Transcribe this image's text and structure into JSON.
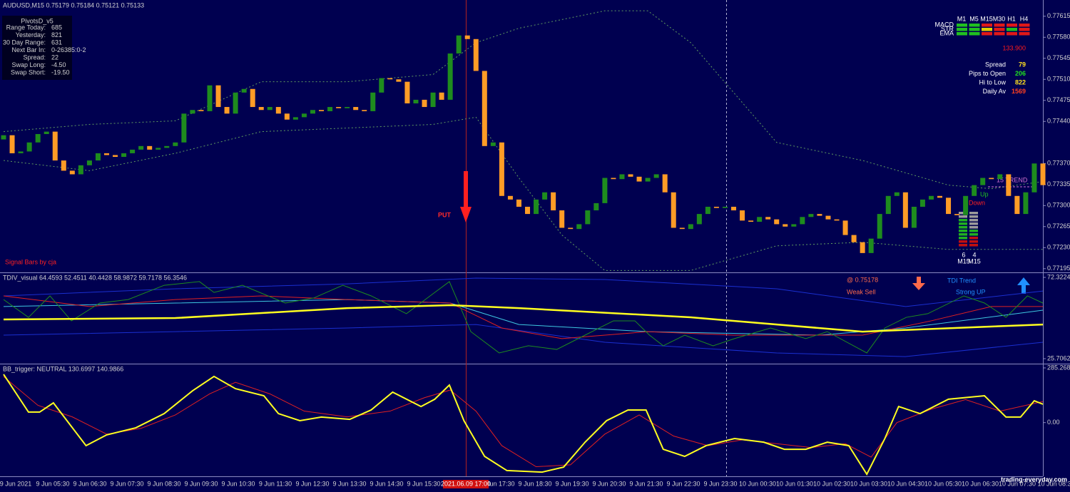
{
  "chart_data": [
    {
      "type": "candlestick",
      "title": "AUDUSD,M15  0.75179 0.75184 0.75121 0.75133",
      "up_color": "#1e8c1e",
      "down_color": "#ff9c26",
      "open": [
        0.7741,
        0.77417,
        0.77387,
        0.7739,
        0.77405,
        0.77419,
        0.77423,
        0.77375,
        0.77358,
        0.77352,
        0.77367,
        0.77375,
        0.77387,
        0.77384,
        0.77381,
        0.77387,
        0.77393,
        0.77399,
        0.77393,
        0.77396,
        0.77399,
        0.77405,
        0.77453,
        0.77459,
        0.77457,
        0.775,
        0.77464,
        0.77453,
        0.77488,
        0.77494,
        0.77464,
        0.77459,
        0.77464,
        0.77453,
        0.77443,
        0.77447,
        0.77453,
        0.77459,
        0.77457,
        0.77464,
        0.77462,
        0.77464,
        0.77459,
        0.77457,
        0.77488,
        0.77512,
        0.7751,
        0.77506,
        0.7747,
        0.77476,
        0.77464,
        0.77488,
        0.77476,
        0.77553,
        0.77583,
        0.77577,
        0.77524,
        0.77399,
        0.77405,
        0.77316,
        0.7731,
        0.77298,
        0.77286,
        0.7731,
        0.77322,
        0.77292,
        0.77263,
        0.77261,
        0.77269,
        0.77292,
        0.77304,
        0.77346,
        0.77344,
        0.77352,
        0.77348,
        0.7734,
        0.77346,
        0.77352,
        0.77322,
        0.77263,
        0.77261,
        0.77269,
        0.77286,
        0.77298,
        0.77296,
        0.77298,
        0.77292,
        0.77275,
        0.77273,
        0.77281,
        0.77277,
        0.77269,
        0.77265,
        0.77269,
        0.77281,
        0.77286,
        0.77283,
        0.77277,
        0.77275,
        0.77251,
        0.77239,
        0.77221,
        0.77245,
        0.77286,
        0.77316,
        0.77322,
        0.77263,
        0.77298,
        0.7731,
        0.77316,
        0.77313,
        0.77286,
        0.77284,
        0.77316,
        0.77334,
        0.77346,
        0.77344,
        0.77352,
        0.77316,
        0.77286,
        0.77322,
        0.7737
      ],
      "close": [
        0.77417,
        0.77387,
        0.7739,
        0.77405,
        0.77419,
        0.77423,
        0.77375,
        0.77358,
        0.77352,
        0.77367,
        0.77375,
        0.77387,
        0.77384,
        0.77381,
        0.77387,
        0.77393,
        0.77399,
        0.77393,
        0.77396,
        0.77399,
        0.77405,
        0.77453,
        0.77459,
        0.77457,
        0.775,
        0.77464,
        0.77453,
        0.77488,
        0.77494,
        0.77464,
        0.77459,
        0.77464,
        0.77453,
        0.77443,
        0.77447,
        0.77453,
        0.77459,
        0.77457,
        0.77464,
        0.77462,
        0.77464,
        0.77459,
        0.77457,
        0.77488,
        0.77512,
        0.7751,
        0.77506,
        0.7747,
        0.77476,
        0.77464,
        0.77488,
        0.77476,
        0.77553,
        0.77583,
        0.77577,
        0.77524,
        0.77399,
        0.77405,
        0.77316,
        0.7731,
        0.77298,
        0.77286,
        0.7731,
        0.77322,
        0.77292,
        0.77263,
        0.77261,
        0.77269,
        0.77292,
        0.77304,
        0.77346,
        0.77344,
        0.77352,
        0.77348,
        0.7734,
        0.77346,
        0.77352,
        0.77322,
        0.77263,
        0.77261,
        0.77269,
        0.77286,
        0.77298,
        0.77296,
        0.77298,
        0.77292,
        0.77275,
        0.77273,
        0.77281,
        0.77277,
        0.77269,
        0.77265,
        0.77269,
        0.77281,
        0.77286,
        0.77283,
        0.77277,
        0.77275,
        0.77251,
        0.77239,
        0.77221,
        0.77245,
        0.77286,
        0.77316,
        0.77322,
        0.77263,
        0.77298,
        0.7731,
        0.77316,
        0.77313,
        0.77286,
        0.77284,
        0.77316,
        0.77334,
        0.77346,
        0.77344,
        0.77352,
        0.77316,
        0.77286,
        0.77322,
        0.7737,
        0.77334
      ],
      "series": [
        {
          "color": "#5f9a5f",
          "dash": true,
          "x": [
            0,
            10,
            20,
            30,
            40,
            50,
            55,
            60,
            70,
            75,
            80,
            90,
            100,
            110,
            115,
            121
          ],
          "values": [
            0.77423,
            0.77435,
            0.77441,
            0.77506,
            0.77506,
            0.77518,
            0.77571,
            0.77595,
            0.77624,
            0.77624,
            0.77571,
            0.77405,
            0.77375,
            0.77334,
            0.77328,
            0.7734
          ]
        },
        {
          "color": "#5f9a5f",
          "dash": true,
          "x": [
            0,
            10,
            20,
            30,
            40,
            50,
            55,
            60,
            65,
            70,
            80,
            90,
            100,
            110,
            121
          ],
          "values": [
            0.77375,
            0.77358,
            0.77387,
            0.77423,
            0.77429,
            0.77435,
            0.77447,
            0.77346,
            0.77251,
            0.77192,
            0.77192,
            0.77233,
            0.77239,
            0.77227,
            0.77227
          ]
        }
      ],
      "ylim": [
        0.7719,
        0.77642
      ],
      "yticks": [
        0.77615,
        {
          "value": 0.7758,
          "label": "0.77580"
        },
        0.77545,
        {
          "value": 0.7751,
          "label": "0.77510"
        },
        0.77475,
        {
          "value": 0.7744,
          "label": "0.77440"
        },
        {
          "value": 0.7737,
          "label": "0.77370"
        },
        0.77335,
        {
          "value": 0.773,
          "label": "0.77300"
        },
        0.77265,
        {
          "value": 0.7723,
          "label": "0.77230"
        },
        0.77195
      ],
      "annotations": {
        "signal": "PUT",
        "credit": "Signal Bars by cja",
        "trend": "15 TREND",
        "up": "Up",
        "down": "Down",
        "count_up": "6",
        "count_down": "4",
        "tf_left": "M15",
        "tf_right": "M15"
      }
    },
    {
      "type": "line",
      "title": "TDIV_visual 64.4593 52.4511 40.4428 58.9872 59.7178 56.3546",
      "series": [
        {
          "color": "#1a2fd0",
          "x": [
            0,
            20,
            40,
            55,
            70,
            90,
            105,
            121
          ],
          "values": [
            61.7,
            65.8,
            68.6,
            71.9,
            71.1,
            65.8,
            55.6,
            64.5
          ]
        },
        {
          "color": "#1a2fd0",
          "x": [
            0,
            20,
            40,
            55,
            70,
            90,
            105,
            121
          ],
          "values": [
            39.2,
            41.2,
            43.3,
            45.3,
            35.1,
            29.0,
            26.9,
            35.1
          ]
        },
        {
          "color": "#3ec8e0",
          "x": [
            0,
            20,
            40,
            52,
            60,
            75,
            95,
            105,
            121
          ],
          "values": [
            55.6,
            57.6,
            59.6,
            57.6,
            45.3,
            41.2,
            39.2,
            43.3,
            53.5
          ]
        },
        {
          "color": "#e02020",
          "x": [
            0,
            10,
            20,
            30,
            40,
            52,
            58,
            65,
            75,
            85,
            95,
            100,
            108,
            115,
            121
          ],
          "values": [
            61.7,
            55.6,
            59.6,
            61.7,
            59.6,
            57.6,
            43.3,
            37.2,
            41.2,
            39.2,
            39.2,
            39.2,
            47.4,
            55.6,
            55.6
          ]
        },
        {
          "color": "#1e8c1e",
          "x": [
            0,
            2.9,
            5.4,
            7.9,
            11.2,
            14.5,
            18.7,
            22.8,
            24.5,
            27.8,
            32.8,
            36.1,
            39.5,
            42.8,
            46.9,
            50.2,
            51.9,
            54.4,
            57.7,
            61.1,
            64.4,
            67.7,
            71,
            73.5,
            75.2,
            76.8,
            79.3,
            82.6,
            85.1,
            89.3,
            93.4,
            95.9,
            100.5,
            102.6,
            105.1,
            107.6,
            111.8,
            114.2,
            116.7,
            119.2,
            121
          ],
          "values": [
            59.6,
            49.4,
            61.7,
            47.4,
            57.6,
            59.6,
            67.8,
            69.9,
            63.7,
            67.8,
            57.6,
            60.5,
            67.8,
            61.7,
            51.5,
            63.7,
            69.9,
            41.2,
            29.0,
            33.1,
            31.0,
            39.2,
            47.4,
            47.4,
            39.2,
            33.1,
            39.2,
            33.1,
            37.2,
            43.3,
            37.2,
            41.2,
            29.0,
            43.3,
            49.4,
            51.5,
            61.7,
            57.6,
            49.4,
            61.7,
            57.6
          ]
        },
        {
          "color": "#ffff20",
          "width": 2.5,
          "x": [
            0,
            20,
            40,
            52,
            60,
            80,
            100,
            121
          ],
          "values": [
            48.2,
            49.0,
            54.7,
            56.4,
            54.7,
            49.4,
            41.2,
            45.3
          ]
        }
      ],
      "ylim": [
        23.66,
        74.37
      ],
      "yticks": [
        72.3224,
        25.7062
      ],
      "annotations": {
        "price": "@ 0.75178",
        "signal": "Weak Sell",
        "trend_title": "TDI Trend",
        "trend_value": "Strong UP"
      }
    },
    {
      "type": "line",
      "title": "BB_trigger: NEUTRAL 130.6997 140.9866",
      "series": [
        {
          "color": "#e02020",
          "x": [
            0,
            4,
            8,
            12,
            16,
            20,
            24,
            27,
            31,
            35,
            40,
            45,
            49,
            52,
            55,
            58,
            62,
            66,
            70,
            74,
            78,
            82,
            86,
            90,
            94,
            98,
            101,
            104,
            108,
            112,
            116,
            121
          ],
          "values": [
            240,
            90,
            30,
            -60,
            -30,
            40,
            150,
            210,
            150,
            60,
            30,
            60,
            130,
            170,
            60,
            -120,
            -230,
            -220,
            -60,
            40,
            -70,
            -120,
            -90,
            -110,
            -130,
            -110,
            -180,
            0,
            70,
            120,
            60,
            110
          ]
        },
        {
          "color": "#ffff20",
          "width": 2,
          "x": [
            0,
            2.9,
            4.2,
            5.8,
            9.6,
            12,
            15.4,
            18.7,
            22,
            24.5,
            27,
            30.3,
            32,
            34.5,
            37,
            40.3,
            42.8,
            45.3,
            48.6,
            50.2,
            51.9,
            53.6,
            56,
            58.6,
            62.7,
            65.2,
            67.7,
            70.2,
            72.7,
            74.8,
            76.8,
            79.3,
            81.8,
            85.1,
            88.5,
            90.9,
            93.4,
            95.9,
            98.4,
            100.5,
            102.6,
            104.2,
            106.7,
            110,
            114.2,
            116.7,
            118.4,
            120,
            121
          ],
          "values": [
            252,
            55,
            55,
            103,
            -120,
            -64,
            -27,
            47,
            166,
            241,
            177,
            140,
            47,
            10,
            29,
            17,
            66,
            159,
            84,
            122,
            196,
            10,
            -176,
            -250,
            -258,
            -232,
            -102,
            10,
            66,
            66,
            -139,
            -176,
            -120,
            -83,
            -102,
            -139,
            -139,
            -102,
            -120,
            -269,
            -83,
            84,
            47,
            122,
            140,
            29,
            29,
            114,
            96
          ]
        }
      ],
      "ylim": [
        -280,
        300
      ],
      "yticks": [
        285.2681,
        {
          "value": 0,
          "label": "0.00"
        }
      ]
    }
  ],
  "pivots": {
    "title": "PivotsD_v5",
    "rows": [
      [
        "Range  Today:",
        "685"
      ],
      [
        "Yesterday:",
        "821"
      ],
      [
        "30 Day Range:",
        "631"
      ],
      [
        "Next Bar In:",
        "0-26385:0-2"
      ],
      [
        "Spread:",
        "22"
      ],
      [
        "Swap  Long:",
        "-4.50"
      ],
      [
        "Swap  Short:",
        "-19.50"
      ]
    ]
  },
  "dashboard": {
    "timeframes": [
      "M1",
      "M5",
      "M15",
      "M30",
      "H1",
      "H4"
    ],
    "indicators": [
      "MACD",
      "STR",
      "EMA"
    ],
    "price": "133.900",
    "stats": [
      [
        "Spread",
        "79"
      ],
      [
        "Pips to Open",
        "206"
      ],
      [
        "Hi to Low",
        "822"
      ],
      [
        "Daily Av",
        "1569"
      ]
    ]
  },
  "time_axis": {
    "labels": [
      "9 Jun 2021",
      "9 Jun 05:30",
      "9 Jun 06:30",
      "9 Jun 07:30",
      "9 Jun 08:30",
      "9 Jun 09:30",
      "9 Jun 10:30",
      "9 Jun 11:30",
      "9 Jun 12:30",
      "9 Jun 13:30",
      "9 Jun 14:30",
      "9 Jun 15:30",
      "9 Jun 17:30",
      "9 Jun 18:30",
      "9 Jun 19:30",
      "9 Jun 20:30",
      "9 Jun 21:30",
      "9 Jun 22:30",
      "9 Jun 23:30",
      "10 Jun 00:30",
      "10 Jun 01:30",
      "10 Jun 02:30",
      "10 Jun 03:30",
      "10 Jun 04:30",
      "10 Jun 05:30",
      "10 Jun 06:30",
      "10 Jun 07:30",
      "10 Jun 08:3"
    ],
    "cursor": "2021.06.09 17:00"
  },
  "watermark": "trading-everyday.com"
}
